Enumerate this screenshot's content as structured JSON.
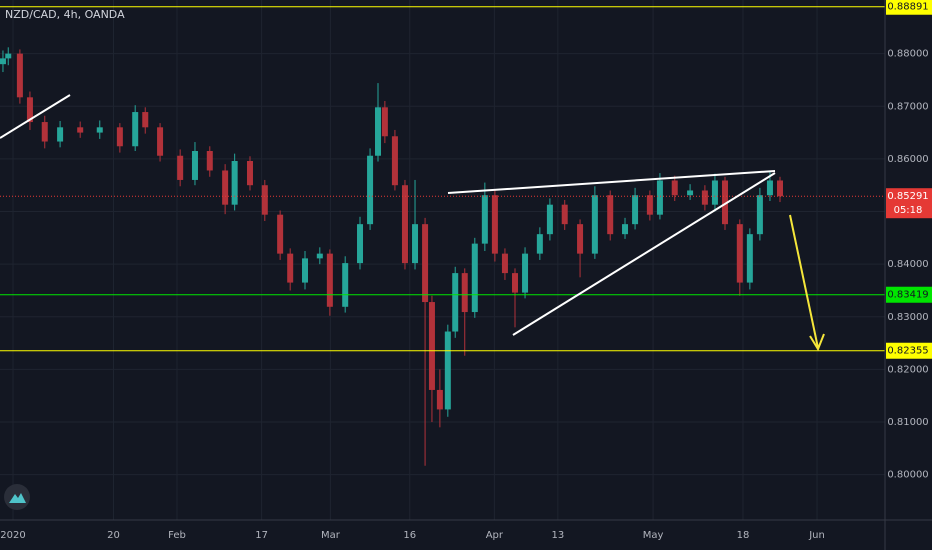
{
  "chart_data": {
    "type": "candlestick",
    "title": "NZD/CAD, 4h, OANDA",
    "x": [
      -1.9,
      -0.9,
      1.3,
      3.2,
      6.0,
      8.9,
      12.7,
      16.4,
      20.2,
      23.1,
      25.0,
      27.8,
      31.6,
      34.4,
      37.2,
      40.1,
      41.9,
      44.8,
      47.6,
      50.5,
      52.4,
      55.2,
      58.0,
      59.9,
      62.8,
      65.6,
      67.5,
      69.0,
      70.3,
      72.2,
      74.1,
      76.0,
      77.9,
      79.2,
      80.7,
      82.2,
      83.6,
      85.4,
      87.3,
      89.2,
      91.1,
      93.0,
      94.9,
      96.8,
      99.6,
      101.5,
      104.3,
      107.2,
      110.0,
      112.9,
      115.7,
      117.6,
      120.4,
      122.3,
      125.1,
      128.0,
      130.8,
      132.7,
      134.6,
      137.4,
      139.3,
      141.2,
      143.1,
      145.0
    ],
    "open": [
      0.878,
      0.8791,
      0.88,
      0.8717,
      0.867,
      0.8633,
      0.866,
      0.865,
      0.866,
      0.8624,
      0.8689,
      0.866,
      0.8606,
      0.856,
      0.8615,
      0.8578,
      0.8513,
      0.8596,
      0.855,
      0.8494,
      0.842,
      0.8365,
      0.8411,
      0.842,
      0.8319,
      0.8402,
      0.8476,
      0.8606,
      0.8698,
      0.8643,
      0.855,
      0.8402,
      0.8476,
      0.8328,
      0.8161,
      0.8124,
      0.8272,
      0.8383,
      0.8309,
      0.8439,
      0.8531,
      0.842,
      0.8383,
      0.8346,
      0.842,
      0.8457,
      0.8513,
      0.8476,
      0.842,
      0.8531,
      0.8457,
      0.8476,
      0.8531,
      0.8494,
      0.8559,
      0.8531,
      0.854,
      0.8513,
      0.8559,
      0.8476,
      0.8365,
      0.8457,
      0.8531,
      0.8559
    ],
    "high": [
      0.8806,
      0.8812,
      0.8808,
      0.8728,
      0.8682,
      0.8672,
      0.8671,
      0.8673,
      0.8668,
      0.8702,
      0.8698,
      0.8668,
      0.8618,
      0.8632,
      0.8624,
      0.859,
      0.861,
      0.8605,
      0.856,
      0.8502,
      0.843,
      0.8425,
      0.8432,
      0.8428,
      0.8415,
      0.849,
      0.862,
      0.8744,
      0.871,
      0.8655,
      0.856,
      0.856,
      0.8488,
      0.834,
      0.82,
      0.8285,
      0.8395,
      0.8392,
      0.845,
      0.8555,
      0.854,
      0.843,
      0.8392,
      0.8432,
      0.847,
      0.8525,
      0.8522,
      0.8485,
      0.8548,
      0.854,
      0.8488,
      0.8545,
      0.854,
      0.8573,
      0.8568,
      0.8552,
      0.855,
      0.8572,
      0.8566,
      0.8485,
      0.8468,
      0.8545,
      0.8575,
      0.8566
    ],
    "low": [
      0.8765,
      0.8778,
      0.8705,
      0.8655,
      0.862,
      0.8622,
      0.864,
      0.8638,
      0.8612,
      0.8615,
      0.8648,
      0.8595,
      0.8548,
      0.855,
      0.8566,
      0.8495,
      0.8502,
      0.854,
      0.8482,
      0.8408,
      0.835,
      0.8352,
      0.84,
      0.8302,
      0.8308,
      0.839,
      0.8465,
      0.8595,
      0.863,
      0.854,
      0.839,
      0.839,
      0.8017,
      0.81,
      0.809,
      0.811,
      0.826,
      0.8226,
      0.8298,
      0.8425,
      0.8405,
      0.837,
      0.828,
      0.8335,
      0.8408,
      0.8445,
      0.8465,
      0.8375,
      0.841,
      0.8445,
      0.8448,
      0.8466,
      0.8483,
      0.8485,
      0.852,
      0.8522,
      0.8502,
      0.85,
      0.8465,
      0.834,
      0.8352,
      0.8445,
      0.852,
      0.8518
    ],
    "close": [
      0.8791,
      0.88,
      0.8717,
      0.867,
      0.8633,
      0.866,
      0.865,
      0.866,
      0.8624,
      0.8689,
      0.866,
      0.8606,
      0.856,
      0.8615,
      0.8578,
      0.8513,
      0.8596,
      0.855,
      0.8494,
      0.842,
      0.8365,
      0.8411,
      0.842,
      0.8319,
      0.8402,
      0.8476,
      0.8606,
      0.8698,
      0.8643,
      0.855,
      0.8402,
      0.8476,
      0.8328,
      0.8161,
      0.8124,
      0.8272,
      0.8383,
      0.8309,
      0.8439,
      0.8531,
      0.842,
      0.8383,
      0.8346,
      0.842,
      0.8457,
      0.8513,
      0.8476,
      0.842,
      0.8531,
      0.8457,
      0.8476,
      0.8531,
      0.8494,
      0.8559,
      0.8531,
      0.854,
      0.8513,
      0.8559,
      0.8476,
      0.8365,
      0.8457,
      0.8531,
      0.8559,
      0.8529
    ],
    "up_color": "#26a69a",
    "down_color": "#b2323a",
    "xlim": [
      -2.46,
      164.85
    ],
    "xticks": [
      {
        "value": 0,
        "label": "2020"
      },
      {
        "value": 19,
        "label": "20"
      },
      {
        "value": 31,
        "label": "Feb"
      },
      {
        "value": 47,
        "label": "17"
      },
      {
        "value": 60,
        "label": "Mar"
      },
      {
        "value": 75,
        "label": "16"
      },
      {
        "value": 91,
        "label": "Apr"
      },
      {
        "value": 103,
        "label": "13"
      },
      {
        "value": 121,
        "label": "May"
      },
      {
        "value": 138,
        "label": "18"
      },
      {
        "value": 152,
        "label": "Jun"
      }
    ],
    "ylim": [
      0.79139,
      0.89019
    ],
    "yticks": [
      {
        "value": 0.8,
        "label": "0.80000"
      },
      {
        "value": 0.81,
        "label": "0.81000"
      },
      {
        "value": 0.82,
        "label": "0.82000"
      },
      {
        "value": 0.83,
        "label": "0.83000"
      },
      {
        "value": 0.84,
        "label": "0.84000"
      },
      {
        "value": 0.85,
        "label": "0.85000"
      },
      {
        "value": 0.86,
        "label": "0.86000"
      },
      {
        "value": 0.87,
        "label": "0.87000"
      },
      {
        "value": 0.88,
        "label": "0.88000"
      }
    ],
    "grid": true,
    "hlines": [
      {
        "value": 0.88891,
        "color": "#ffff00"
      },
      {
        "value": 0.83419,
        "color": "#00e600"
      },
      {
        "value": 0.82355,
        "color": "#ffff00"
      }
    ],
    "last_price": {
      "value": 0.85291,
      "color": "#e53935",
      "countdown": "05:18"
    }
  }
}
